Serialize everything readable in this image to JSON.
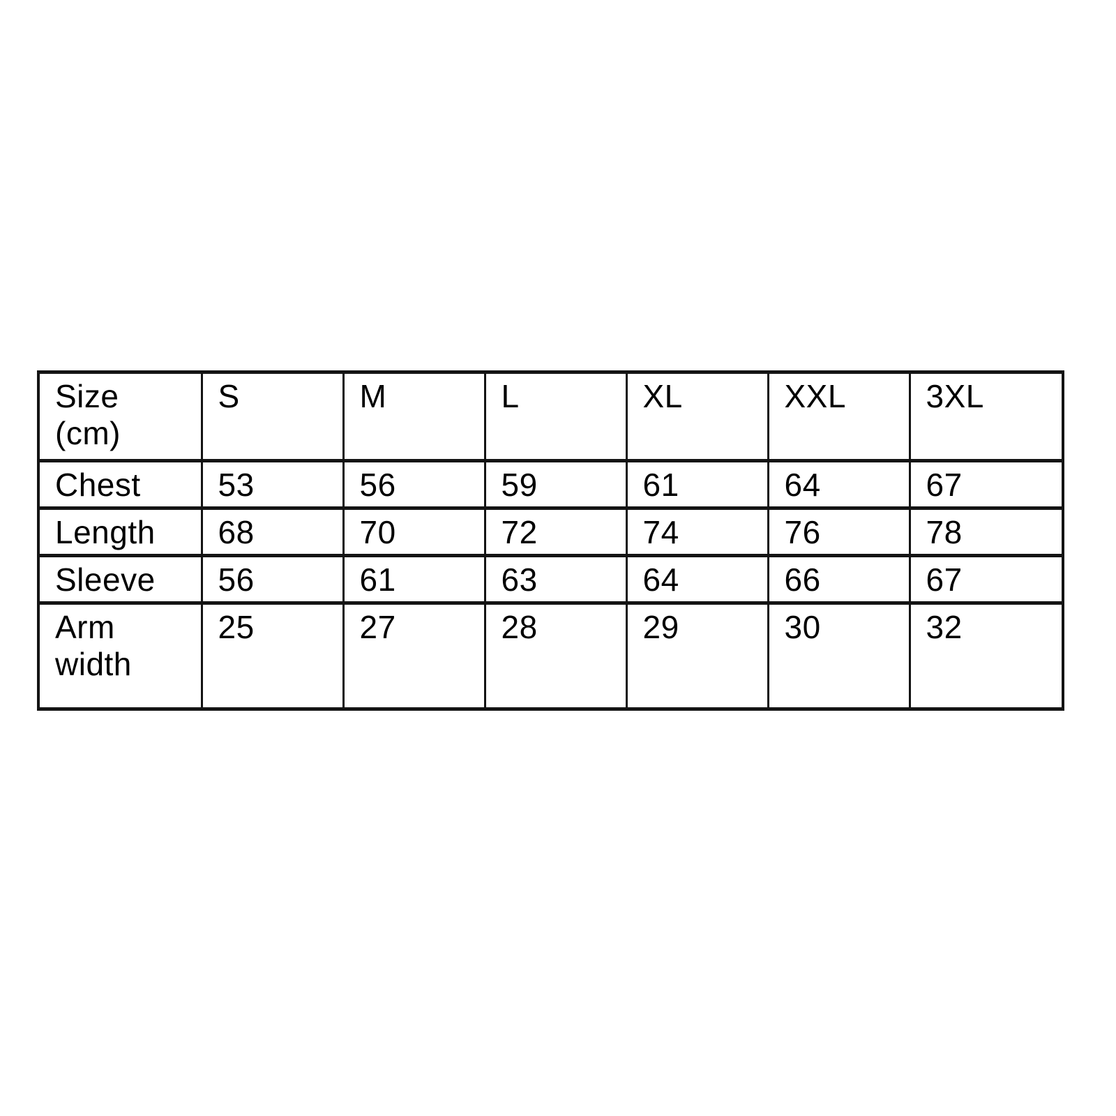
{
  "page": {
    "background_color": "#ffffff",
    "border_color": "#141414",
    "text_color": "#000000"
  },
  "size_chart": {
    "columns": [
      "Size\n(cm)",
      "S",
      "M",
      "L",
      "XL",
      "XXL",
      "3XL"
    ],
    "rows": [
      {
        "label": "Chest",
        "values": [
          "53",
          "56",
          "59",
          "61",
          "64",
          "67"
        ]
      },
      {
        "label": "Length",
        "values": [
          "68",
          "70",
          "72",
          "74",
          "76",
          "78"
        ]
      },
      {
        "label": "Sleeve",
        "values": [
          "56",
          "61",
          "63",
          "64",
          "66",
          "67"
        ]
      },
      {
        "label": "Arm\nwidth",
        "values": [
          "25",
          "27",
          "28",
          "29",
          "30",
          "32"
        ]
      }
    ]
  },
  "chart_data": {
    "type": "table",
    "title": "Size (cm)",
    "columns": [
      "Size (cm)",
      "S",
      "M",
      "L",
      "XL",
      "XXL",
      "3XL"
    ],
    "rows": [
      [
        "Chest",
        53,
        56,
        59,
        61,
        64,
        67
      ],
      [
        "Length",
        68,
        70,
        72,
        74,
        76,
        78
      ],
      [
        "Sleeve",
        56,
        61,
        63,
        64,
        66,
        67
      ],
      [
        "Arm width",
        25,
        27,
        28,
        29,
        30,
        32
      ]
    ],
    "layout": {
      "grid": true,
      "header_position": "top-row",
      "units": "cm"
    }
  }
}
